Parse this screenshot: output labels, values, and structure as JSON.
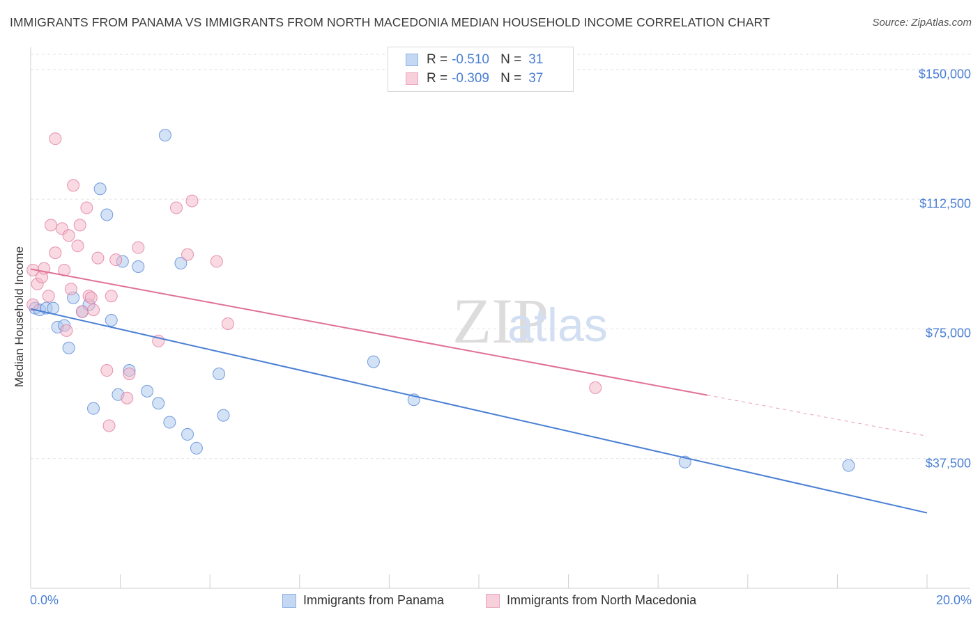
{
  "chart_data": {
    "type": "scatter",
    "title": "IMMIGRANTS FROM PANAMA VS IMMIGRANTS FROM NORTH MACEDONIA MEDIAN HOUSEHOLD INCOME CORRELATION CHART",
    "source": "Source: ZipAtlas.com",
    "ylabel": "Median Household Income",
    "xlabel": "",
    "xlim": [
      0,
      20
    ],
    "ylim": [
      0,
      155000
    ],
    "x_tick_labels": [
      "0.0%",
      "20.0%"
    ],
    "y_ticks": [
      37500,
      75000,
      112500,
      150000
    ],
    "y_tick_labels": [
      "$37,500",
      "$75,000",
      "$112,500",
      "$150,000"
    ],
    "grid": "horizontal dashed",
    "watermark": "ZIPatlas",
    "legend": {
      "placement": "top-center",
      "entries": [
        {
          "r_label": "R =",
          "r_value": "-0.510",
          "n_label": "N =",
          "n_value": "31"
        },
        {
          "r_label": "R =",
          "r_value": "-0.309",
          "n_label": "N =",
          "n_value": "37"
        }
      ]
    },
    "series": [
      {
        "name": "Immigrants from Panama",
        "color": "#4a7fd4",
        "fill": "#aac6ee",
        "trend": {
          "x0": 0,
          "y0": 80800,
          "x1": 20,
          "y1": 21800,
          "solid_to": 20
        },
        "points": [
          [
            0.1,
            81000
          ],
          [
            0.2,
            80500
          ],
          [
            0.35,
            81000
          ],
          [
            0.5,
            81000
          ],
          [
            0.6,
            75500
          ],
          [
            0.75,
            76000
          ],
          [
            0.85,
            69500
          ],
          [
            0.95,
            84000
          ],
          [
            1.15,
            80000
          ],
          [
            1.3,
            82000
          ],
          [
            1.4,
            52000
          ],
          [
            1.55,
            115500
          ],
          [
            1.7,
            108000
          ],
          [
            1.8,
            77500
          ],
          [
            1.95,
            56000
          ],
          [
            2.05,
            94500
          ],
          [
            2.2,
            63000
          ],
          [
            2.4,
            93000
          ],
          [
            2.6,
            57000
          ],
          [
            2.85,
            53500
          ],
          [
            3.0,
            131000
          ],
          [
            3.1,
            48000
          ],
          [
            3.35,
            94000
          ],
          [
            3.5,
            44500
          ],
          [
            3.7,
            40500
          ],
          [
            4.2,
            62000
          ],
          [
            4.3,
            50000
          ],
          [
            7.65,
            65500
          ],
          [
            8.55,
            54500
          ],
          [
            14.6,
            36500
          ],
          [
            18.25,
            35500
          ]
        ]
      },
      {
        "name": "Immigrants from North Macedonia",
        "color": "#e07098",
        "fill": "#f4b6c8",
        "trend": {
          "x0": 0,
          "y0": 92300,
          "x1": 20,
          "y1": 44000,
          "solid_to": 15.1
        },
        "points": [
          [
            0.05,
            82000
          ],
          [
            0.05,
            92000
          ],
          [
            0.15,
            88000
          ],
          [
            0.25,
            90000
          ],
          [
            0.3,
            92500
          ],
          [
            0.4,
            84500
          ],
          [
            0.45,
            105000
          ],
          [
            0.55,
            97000
          ],
          [
            0.55,
            130000
          ],
          [
            0.7,
            104000
          ],
          [
            0.75,
            92000
          ],
          [
            0.8,
            74500
          ],
          [
            0.85,
            102000
          ],
          [
            0.9,
            86500
          ],
          [
            0.95,
            116500
          ],
          [
            1.05,
            99000
          ],
          [
            1.1,
            105000
          ],
          [
            1.15,
            80000
          ],
          [
            1.25,
            110000
          ],
          [
            1.3,
            84500
          ],
          [
            1.35,
            84000
          ],
          [
            1.4,
            80500
          ],
          [
            1.5,
            95500
          ],
          [
            1.7,
            63000
          ],
          [
            1.75,
            47000
          ],
          [
            1.8,
            84500
          ],
          [
            1.9,
            95000
          ],
          [
            2.15,
            55000
          ],
          [
            2.2,
            62000
          ],
          [
            2.4,
            98500
          ],
          [
            2.85,
            71500
          ],
          [
            3.25,
            110000
          ],
          [
            3.5,
            96500
          ],
          [
            3.6,
            112000
          ],
          [
            4.15,
            94500
          ],
          [
            4.4,
            76500
          ],
          [
            12.6,
            58000
          ]
        ]
      }
    ]
  }
}
